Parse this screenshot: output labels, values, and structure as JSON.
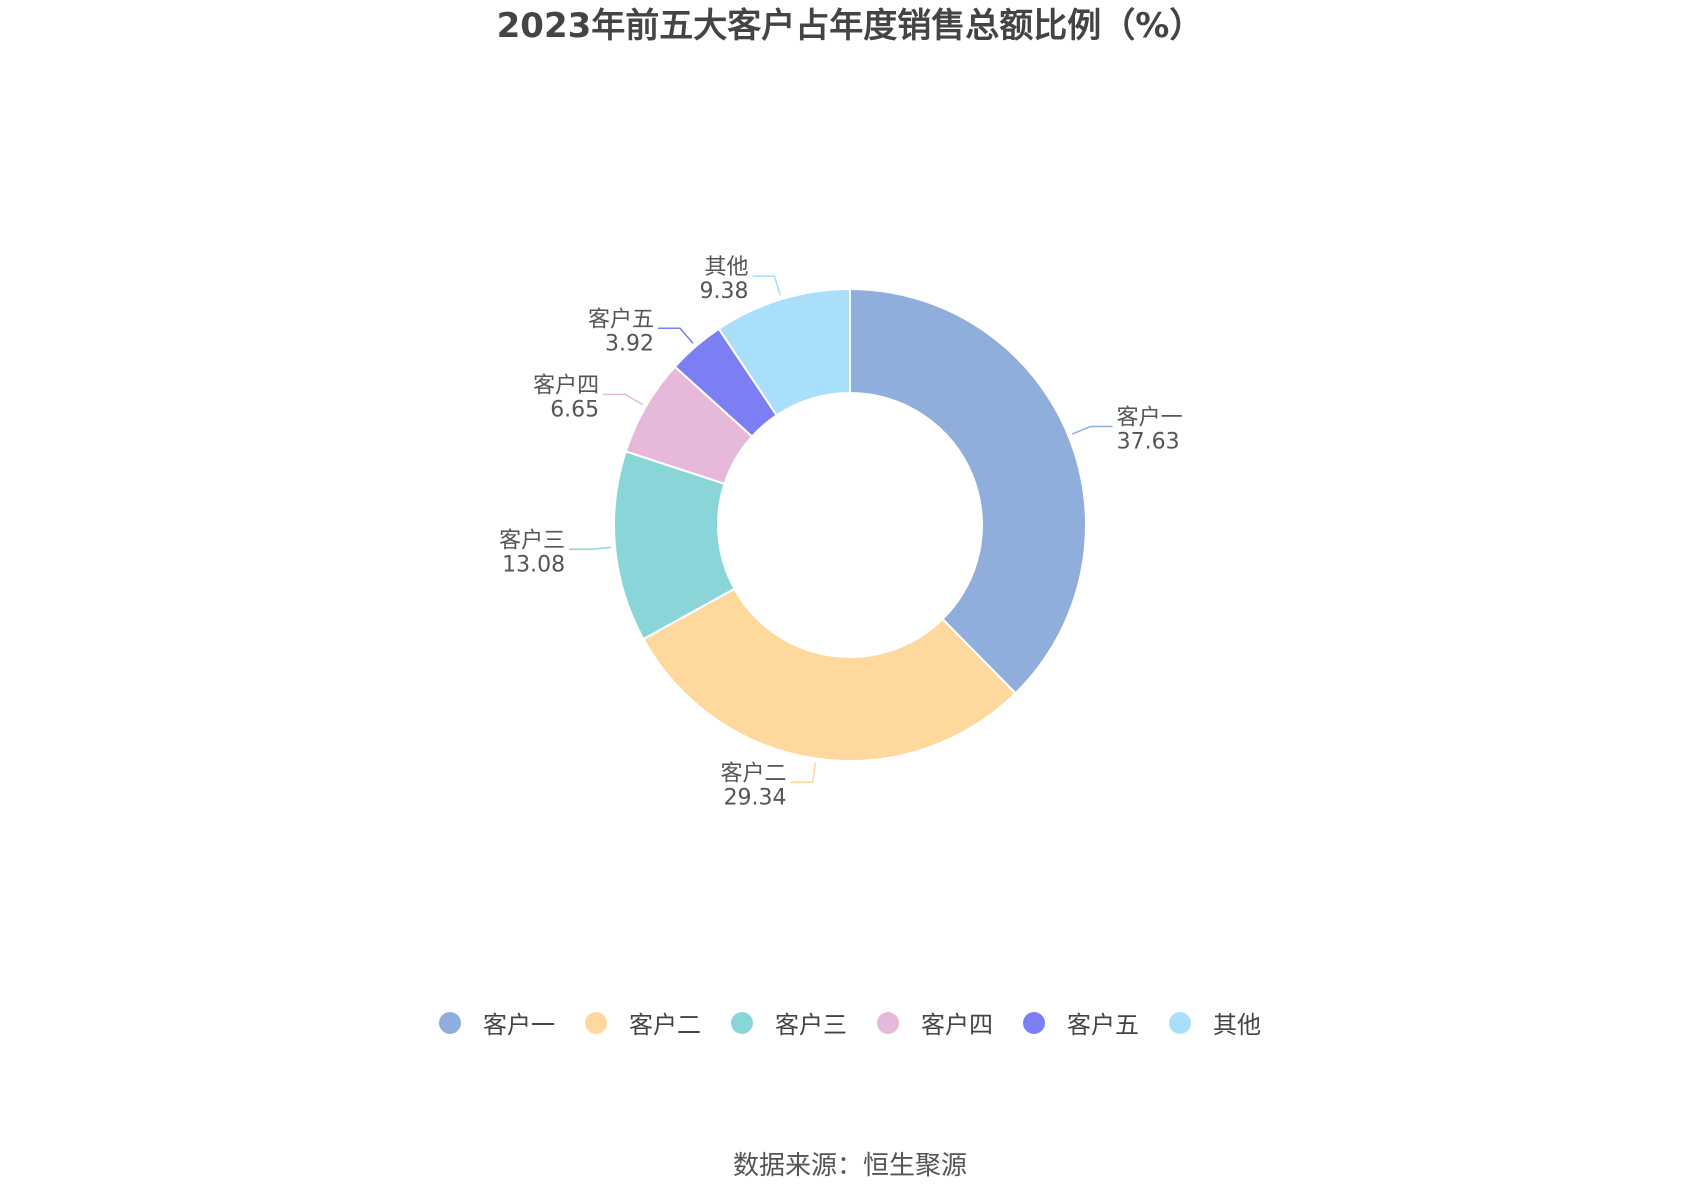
{
  "chart_data": {
    "type": "pie",
    "title": "2023年前五大客户占年度销售总额比例（%）",
    "donut": true,
    "legend_position": "bottom",
    "slices": [
      {
        "label": "客户一",
        "value": 37.63,
        "value_label": "37.63",
        "color": "#8FAEDB"
      },
      {
        "label": "客户二",
        "value": 29.34,
        "value_label": "29.34",
        "color": "#FED89C"
      },
      {
        "label": "客户三",
        "value": 13.08,
        "value_label": "13.08",
        "color": "#89D5D8"
      },
      {
        "label": "客户四",
        "value": 6.65,
        "value_label": "6.65",
        "color": "#E6B9DA"
      },
      {
        "label": "客户五",
        "value": 3.92,
        "value_label": "3.92",
        "color": "#7B7FF3"
      },
      {
        "label": "其他",
        "value": 9.38,
        "value_label": "9.38",
        "color": "#A9DFFA"
      }
    ]
  },
  "source": "数据来源：恒生聚源"
}
